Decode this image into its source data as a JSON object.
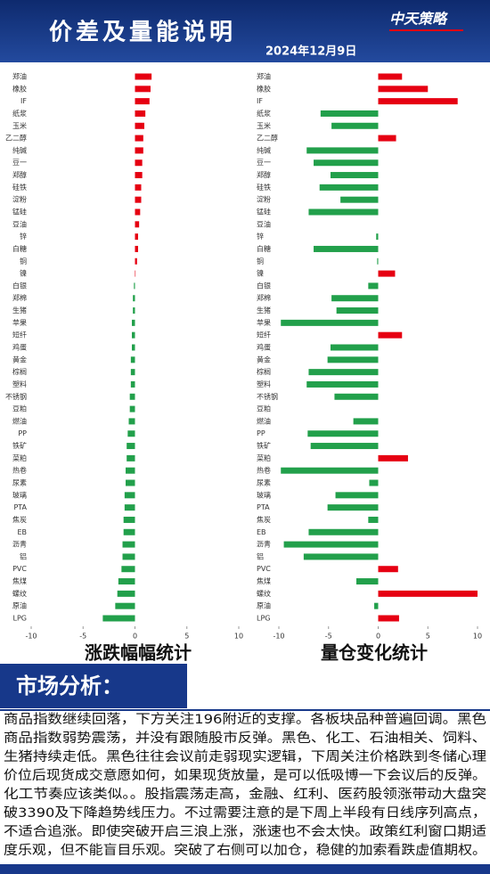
{
  "header": {
    "title": "价差及量能说明",
    "date": "2024年12月9日",
    "logo": "中天策略"
  },
  "chart_data": [
    {
      "type": "barh",
      "title": "涨跌幅幅统计",
      "categories": [
        "郑油",
        "橡胶",
        "IF",
        "纸浆",
        "玉米",
        "乙二醇",
        "纯碱",
        "豆一",
        "郑醇",
        "硅铁",
        "淀粉",
        "锰硅",
        "豆油",
        "锌",
        "白糖",
        "铜",
        "镍",
        "白银",
        "郑棉",
        "生猪",
        "苹果",
        "短纤",
        "鸡蛋",
        "黄金",
        "棕榈",
        "塑料",
        "不锈钢",
        "豆粕",
        "燃油",
        "PP",
        "铁矿",
        "菜粕",
        "热卷",
        "尿素",
        "玻璃",
        "PTA",
        "焦炭",
        "EB",
        "沥青",
        "铝",
        "PVC",
        "焦煤",
        "螺纹",
        "原油",
        "LPG"
      ],
      "values": [
        1.6,
        1.5,
        1.4,
        1.0,
        0.9,
        0.8,
        0.8,
        0.7,
        0.7,
        0.6,
        0.6,
        0.5,
        0.4,
        0.3,
        0.3,
        0.2,
        0.05,
        -0.1,
        -0.2,
        -0.2,
        -0.3,
        -0.3,
        -0.3,
        -0.4,
        -0.4,
        -0.4,
        -0.5,
        -0.5,
        -0.6,
        -0.7,
        -0.8,
        -0.8,
        -0.9,
        -0.9,
        -1.0,
        -1.0,
        -1.1,
        -1.1,
        -1.2,
        -1.2,
        -1.3,
        -1.6,
        -1.7,
        -1.9,
        -3.1
      ],
      "positive_color": "#e60012",
      "negative_color": "#22a04b",
      "xlim": [
        -10,
        10
      ],
      "xticks": [
        -10,
        -5,
        0,
        5,
        10
      ]
    },
    {
      "type": "barh",
      "title": "量仓变化统计",
      "categories": [
        "郑油",
        "橡胶",
        "IF",
        "纸浆",
        "玉米",
        "乙二醇",
        "纯碱",
        "豆一",
        "郑醇",
        "硅铁",
        "淀粉",
        "锰硅",
        "豆油",
        "锌",
        "白糖",
        "铜",
        "镍",
        "白银",
        "郑棉",
        "生猪",
        "苹果",
        "短纤",
        "鸡蛋",
        "黄金",
        "棕榈",
        "塑料",
        "不锈钢",
        "豆粕",
        "燃油",
        "PP",
        "铁矿",
        "菜粕",
        "热卷",
        "尿素",
        "玻璃",
        "PTA",
        "焦炭",
        "EB",
        "沥青",
        "铝",
        "PVC",
        "焦煤",
        "螺纹",
        "原油",
        "LPG"
      ],
      "values": [
        2.4,
        5.0,
        8.0,
        -5.8,
        -4.7,
        1.8,
        -7.2,
        -6.5,
        -4.8,
        -5.9,
        -3.8,
        -7.0,
        0,
        -0.2,
        -6.5,
        -0.1,
        1.7,
        -1.0,
        -4.7,
        -4.2,
        -9.8,
        2.4,
        -4.8,
        -5.1,
        -7.0,
        -7.2,
        -4.4,
        0,
        -2.5,
        -7.1,
        -6.8,
        3.0,
        -9.8,
        -0.9,
        -4.3,
        -5.1,
        -1.0,
        -7.0,
        -9.5,
        -7.5,
        2.0,
        -2.2,
        10.0,
        -0.4,
        2.1
      ],
      "positive_color": "#e60012",
      "negative_color": "#22a04b",
      "xlim": [
        -10,
        10
      ],
      "xticks": [
        -10,
        -5,
        0,
        5,
        10
      ]
    }
  ],
  "analysis": {
    "heading": "市场分析：",
    "lines": [
      "商品指数继续回落，下方关注196附近的支撑。各板块品种普遍回调。黑色",
      "商品指数弱势震荡，并没有跟随股市反弹。黑色、化工、石油相关、饲料、",
      "生猪持续走低。黑色往往会议前走弱现实逻辑，下周关注价格跌到冬储心理",
      "价位后现货成交意愿如何，如果现货放量，是可以低吸博一下会议后的反弹。",
      "化工节奏应该类似。。股指震荡走高，金融、红利、医药股领涨带动大盘突",
      "破3390及下降趋势线压力。不过需要注意的是下周上半段有日线序列高点，",
      "不适合追涨。即使突破开启三浪上涨，涨速也不会太快。政策红利窗口期适",
      "度乐观，但不能盲目乐观。突破了右侧可以加仓，稳健的加索看跌虚值期权。"
    ]
  }
}
